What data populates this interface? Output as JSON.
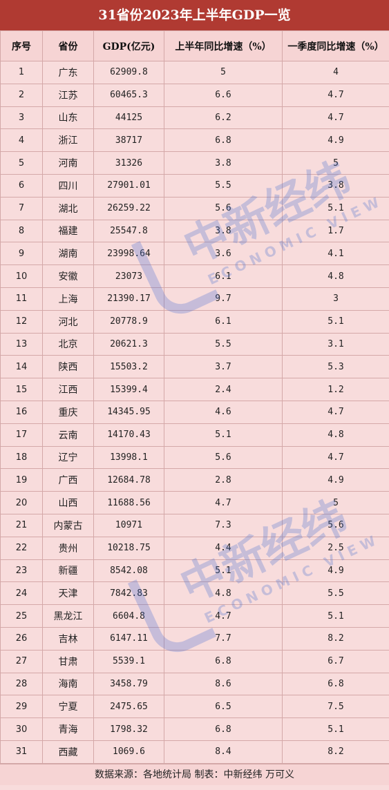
{
  "title": "31省份2023年上半年GDP一览",
  "headers": [
    "序号",
    "省份",
    "GDP(亿元)",
    "上半年同比增速（%）",
    "一季度同比增速（%）"
  ],
  "rows": [
    [
      "1",
      "广东",
      "62909.8",
      "5",
      "4"
    ],
    [
      "2",
      "江苏",
      "60465.3",
      "6.6",
      "4.7"
    ],
    [
      "3",
      "山东",
      "44125",
      "6.2",
      "4.7"
    ],
    [
      "4",
      "浙江",
      "38717",
      "6.8",
      "4.9"
    ],
    [
      "5",
      "河南",
      "31326",
      "3.8",
      "5"
    ],
    [
      "6",
      "四川",
      "27901.01",
      "5.5",
      "3.8"
    ],
    [
      "7",
      "湖北",
      "26259.22",
      "5.6",
      "5.1"
    ],
    [
      "8",
      "福建",
      "25547.8",
      "3.8",
      "1.7"
    ],
    [
      "9",
      "湖南",
      "23998.64",
      "3.6",
      "4.1"
    ],
    [
      "10",
      "安徽",
      "23073",
      "6.1",
      "4.8"
    ],
    [
      "11",
      "上海",
      "21390.17",
      "9.7",
      "3"
    ],
    [
      "12",
      "河北",
      "20778.9",
      "6.1",
      "5.1"
    ],
    [
      "13",
      "北京",
      "20621.3",
      "5.5",
      "3.1"
    ],
    [
      "14",
      "陕西",
      "15503.2",
      "3.7",
      "5.3"
    ],
    [
      "15",
      "江西",
      "15399.4",
      "2.4",
      "1.2"
    ],
    [
      "16",
      "重庆",
      "14345.95",
      "4.6",
      "4.7"
    ],
    [
      "17",
      "云南",
      "14170.43",
      "5.1",
      "4.8"
    ],
    [
      "18",
      "辽宁",
      "13998.1",
      "5.6",
      "4.7"
    ],
    [
      "19",
      "广西",
      "12684.78",
      "2.8",
      "4.9"
    ],
    [
      "20",
      "山西",
      "11688.56",
      "4.7",
      "5"
    ],
    [
      "21",
      "内蒙古",
      "10971",
      "7.3",
      "5.6"
    ],
    [
      "22",
      "贵州",
      "10218.75",
      "4.4",
      "2.5"
    ],
    [
      "23",
      "新疆",
      "8542.08",
      "5.1",
      "4.9"
    ],
    [
      "24",
      "天津",
      "7842.83",
      "4.8",
      "5.5"
    ],
    [
      "25",
      "黑龙江",
      "6604.8",
      "4.7",
      "5.1"
    ],
    [
      "26",
      "吉林",
      "6147.11",
      "7.7",
      "8.2"
    ],
    [
      "27",
      "甘肃",
      "5539.1",
      "6.8",
      "6.7"
    ],
    [
      "28",
      "海南",
      "3458.79",
      "8.6",
      "6.8"
    ],
    [
      "29",
      "宁夏",
      "2475.65",
      "6.5",
      "7.5"
    ],
    [
      "30",
      "青海",
      "1798.32",
      "6.8",
      "5.1"
    ],
    [
      "31",
      "西藏",
      "1069.6",
      "8.4",
      "8.2"
    ]
  ],
  "footer": "数据来源：各地统计局  制表：中新经纬  万可义",
  "watermark": {
    "cn": "中新经纬",
    "en": "ECONOMIC VIEW",
    "color": "#466ed2"
  },
  "colors": {
    "title_bg": "#b03a32",
    "table_bg": "#f8dcdc",
    "grid": "#d4a8a8"
  }
}
